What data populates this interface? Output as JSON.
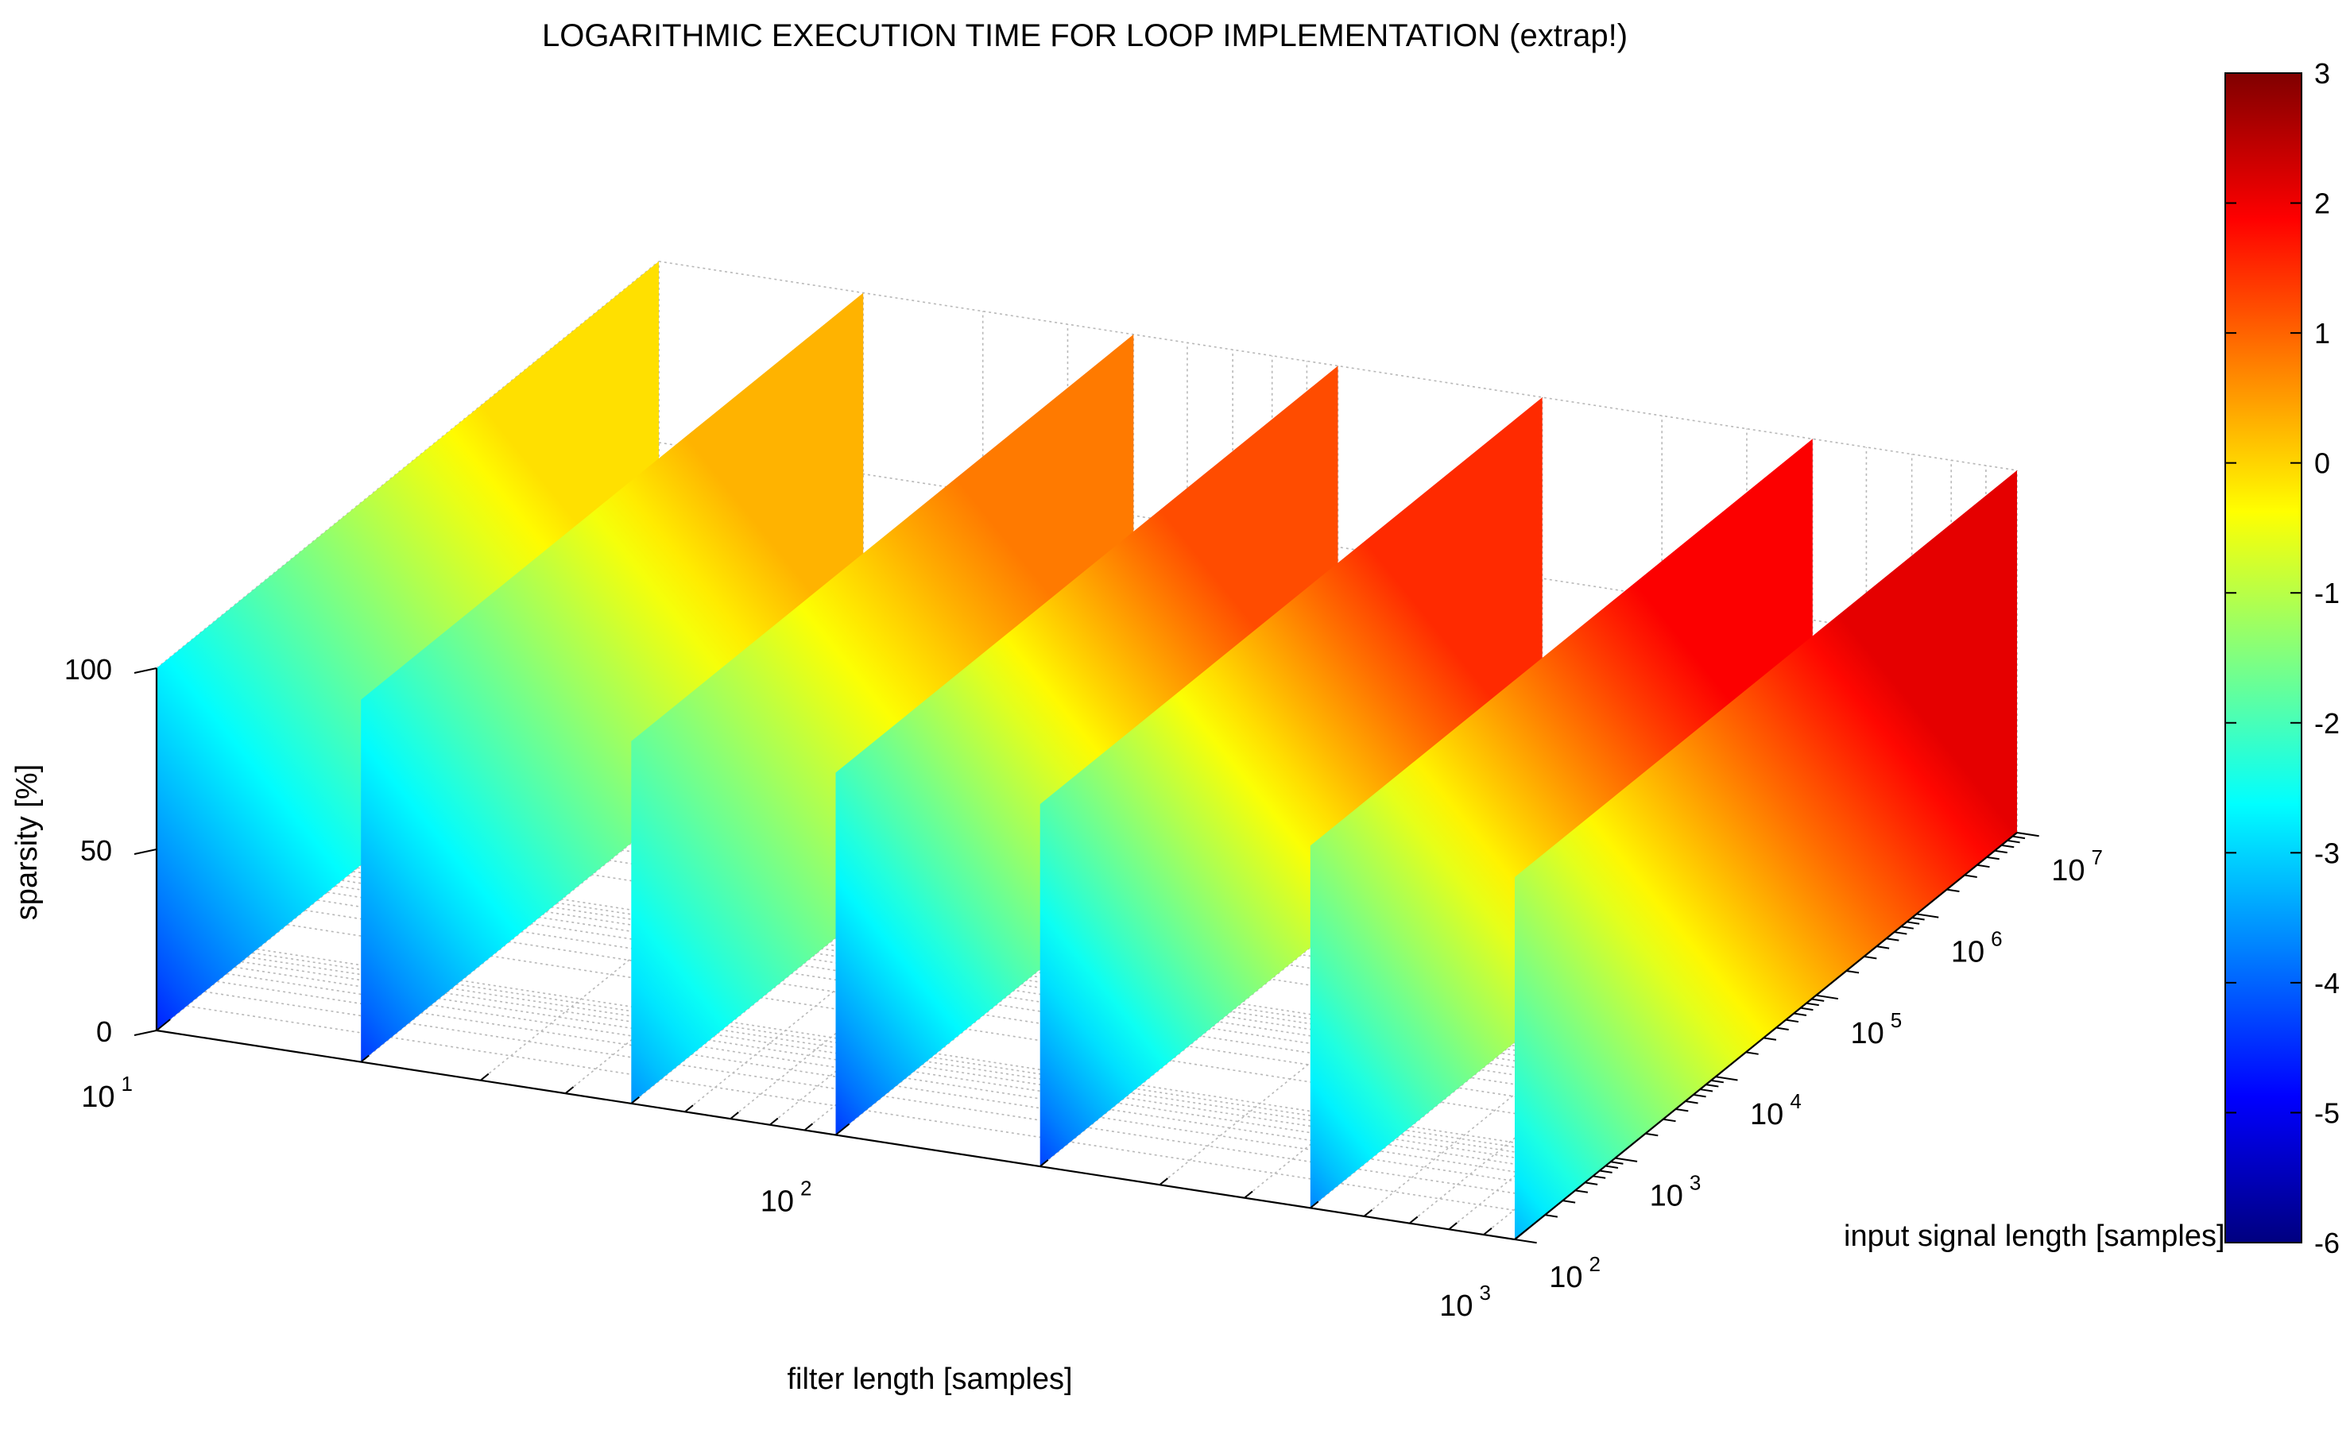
{
  "chart_data": {
    "type": "surface3d",
    "title": "LOGARITHMIC EXECUTION TIME FOR LOOP IMPLEMENTATION (extrap!)",
    "xlabel": "filter length [samples]",
    "ylabel": "input signal length [samples]",
    "zlabel": "sparsity [%]",
    "x_scale": "log",
    "y_scale": "log",
    "x_range": [
      10,
      1000
    ],
    "y_range": [
      100,
      10000000
    ],
    "z_range": [
      0,
      100
    ],
    "x_ticks": [
      {
        "base": "10",
        "exp": "1"
      },
      {
        "base": "10",
        "exp": "2"
      },
      {
        "base": "10",
        "exp": "3"
      }
    ],
    "y_ticks": [
      {
        "base": "10",
        "exp": "2"
      },
      {
        "base": "10",
        "exp": "3"
      },
      {
        "base": "10",
        "exp": "4"
      },
      {
        "base": "10",
        "exp": "5"
      },
      {
        "base": "10",
        "exp": "6"
      },
      {
        "base": "10",
        "exp": "7"
      }
    ],
    "z_ticks": [
      "0",
      "50",
      "100"
    ],
    "slices_filter_length": [
      10,
      20,
      50,
      100,
      200,
      500,
      1000
    ],
    "slice_color_range": [
      {
        "min": -4.6,
        "max": -0.1
      },
      {
        "min": -4.4,
        "max": 0.3
      },
      {
        "min": -3.6,
        "max": 0.8
      },
      {
        "min": -4.4,
        "max": 1.2
      },
      {
        "min": -4.3,
        "max": 1.5
      },
      {
        "min": -3.7,
        "max": 1.9
      },
      {
        "min": -3.3,
        "max": 2.1
      }
    ],
    "grid": true,
    "colorbar": {
      "colormap": "jet",
      "min": -6,
      "max": 3,
      "ticks": [
        "3",
        "2",
        "1",
        "0",
        "-1",
        "-2",
        "-3",
        "-4",
        "-5",
        "-6"
      ]
    }
  }
}
